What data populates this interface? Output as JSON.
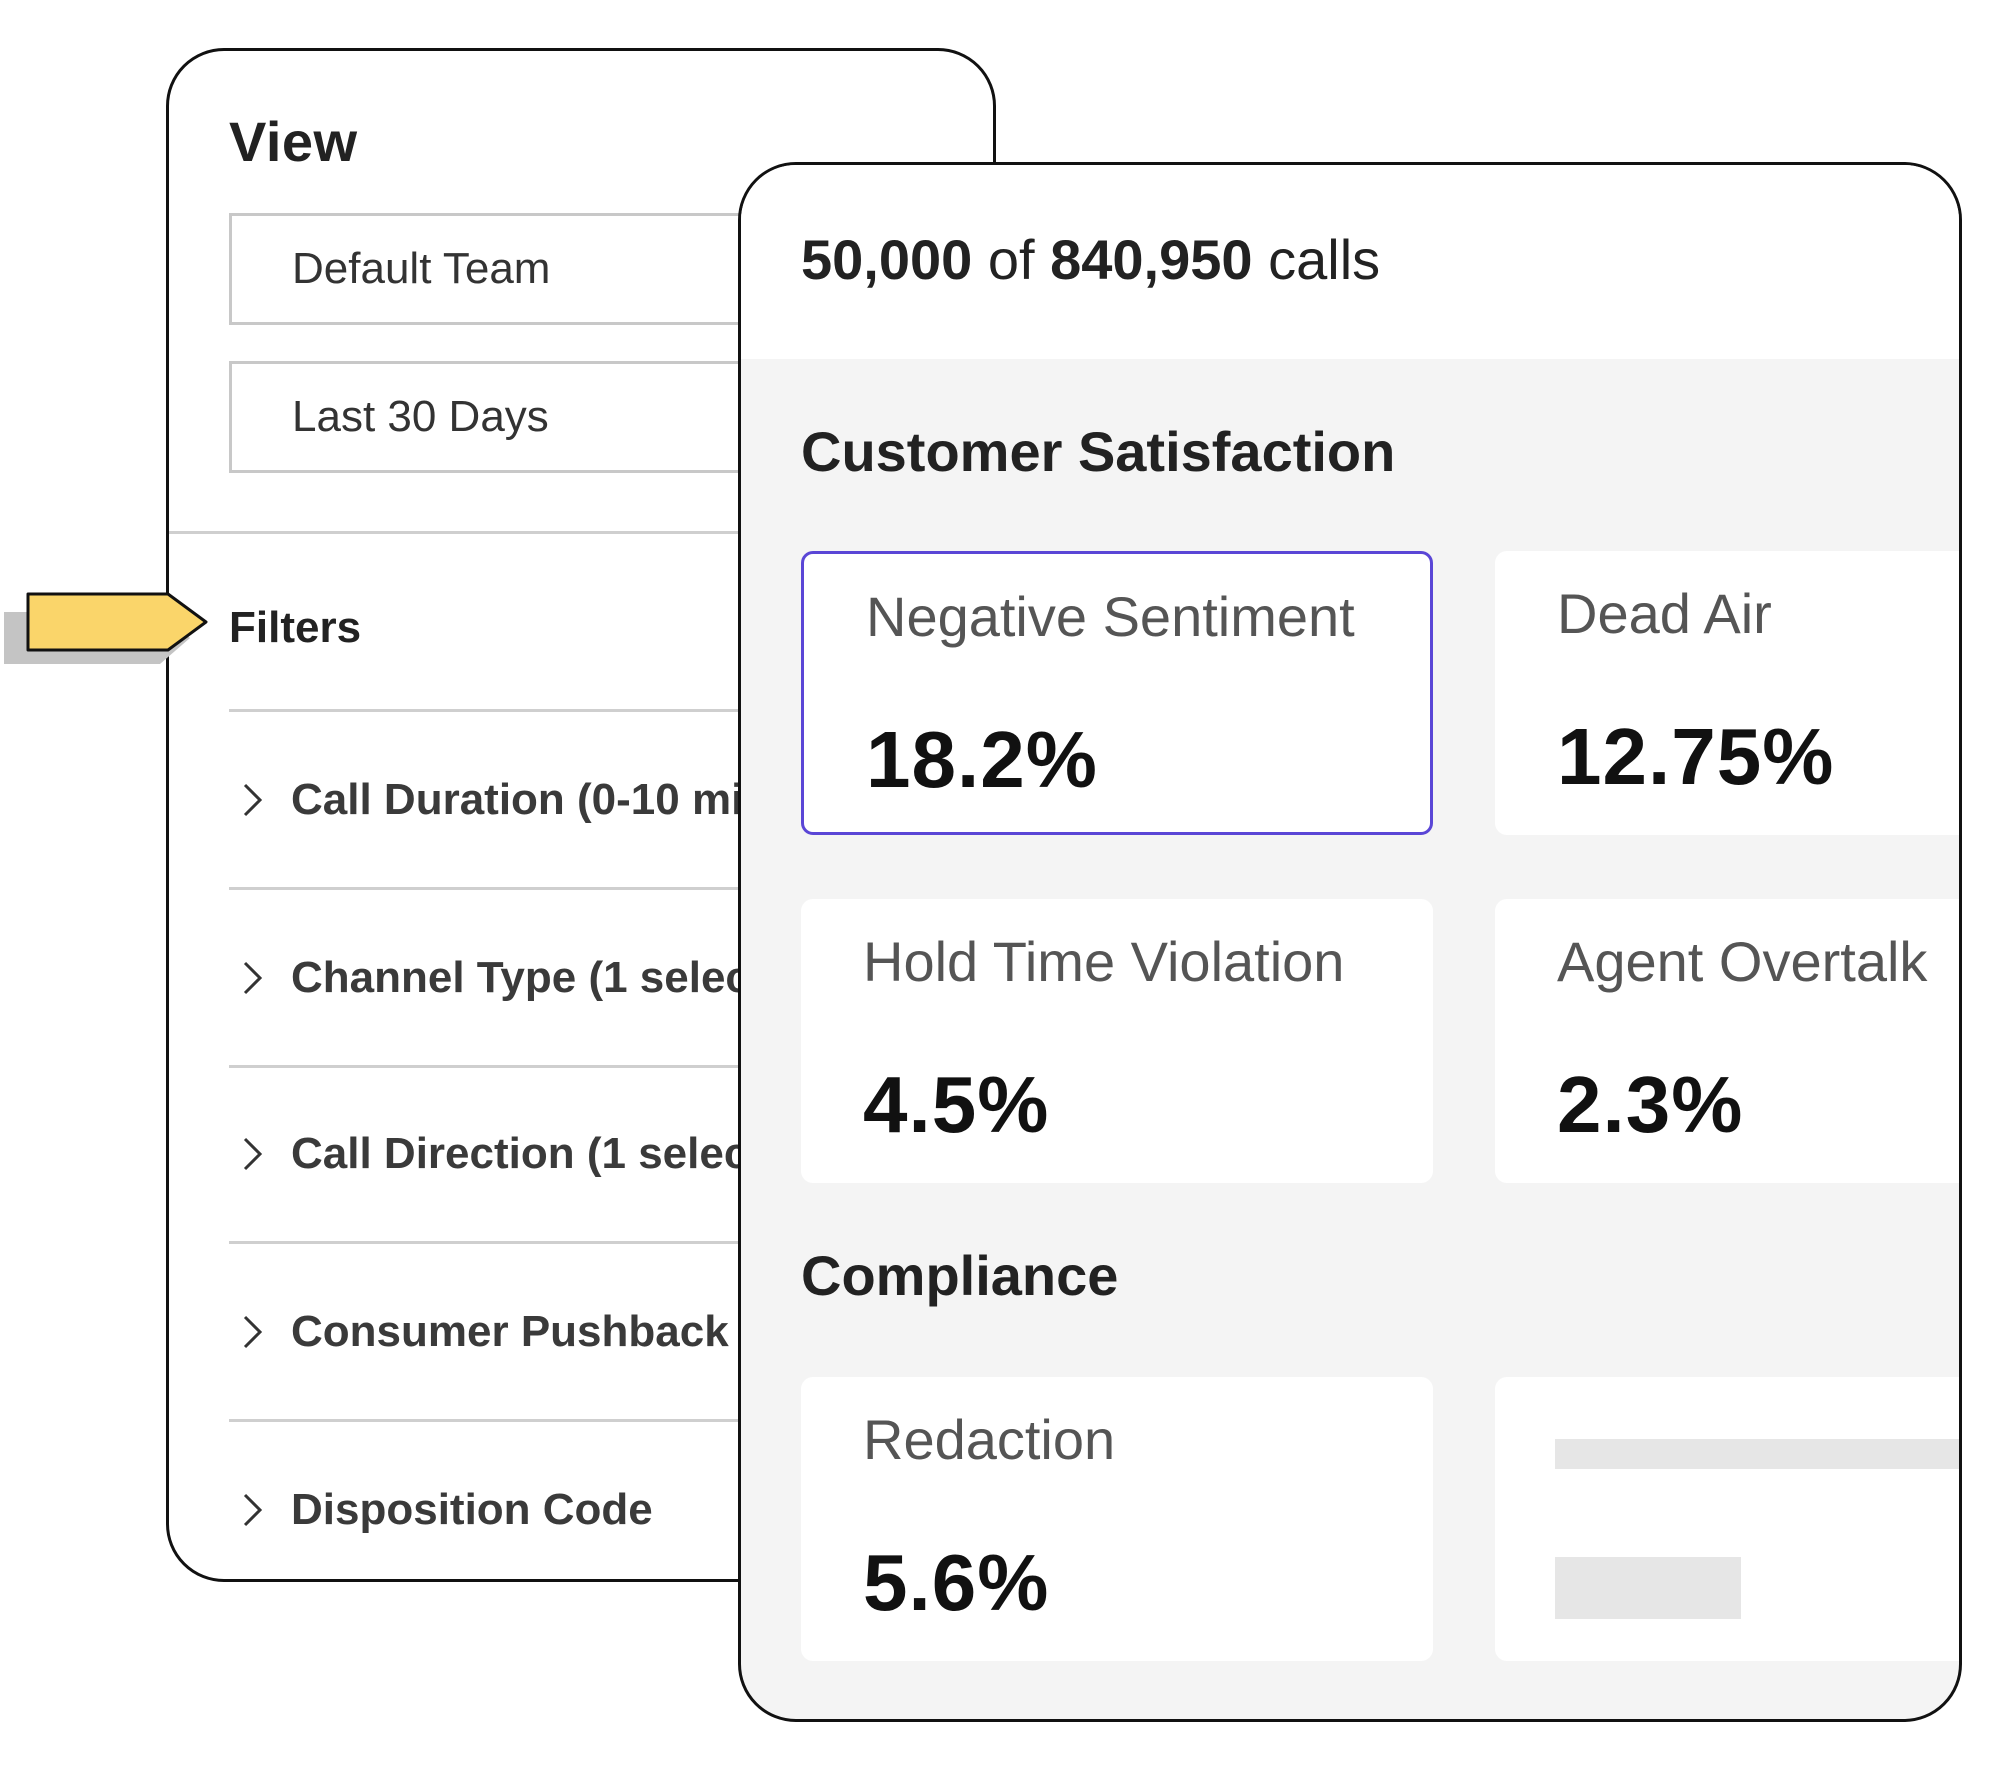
{
  "view_panel": {
    "title": "View",
    "team_select": {
      "value": "Default Team"
    },
    "range_select": {
      "value": "Last 30 Days"
    },
    "filters": {
      "title": "Filters",
      "items": [
        {
          "label": "Call Duration (0-10 mi"
        },
        {
          "label": "Channel Type (1 selec"
        },
        {
          "label": "Call Direction (1 selec"
        },
        {
          "label": "Consumer Pushback"
        },
        {
          "label": "Disposition Code"
        }
      ]
    }
  },
  "pointer_tag": {
    "color": "#FAD56A",
    "shadow_color": "#c4c4c4"
  },
  "metrics_panel": {
    "calls": {
      "shown": "50,000",
      "of_text": "of",
      "total": "840,950",
      "unit": "calls"
    },
    "sections": [
      {
        "title": "Customer Satisfaction",
        "cards": [
          {
            "label": "Negative Sentiment",
            "value": "18.2%",
            "selected": true
          },
          {
            "label": "Dead Air",
            "value": "12.75%"
          },
          {
            "label": "Hold Time Violation",
            "value": "4.5%"
          },
          {
            "label": "Agent Overtalk",
            "value": "2.3%"
          }
        ]
      },
      {
        "title": "Compliance",
        "cards": [
          {
            "label": "Redaction",
            "value": "5.6%"
          }
        ]
      }
    ],
    "accent_color": "#5a46d6"
  }
}
